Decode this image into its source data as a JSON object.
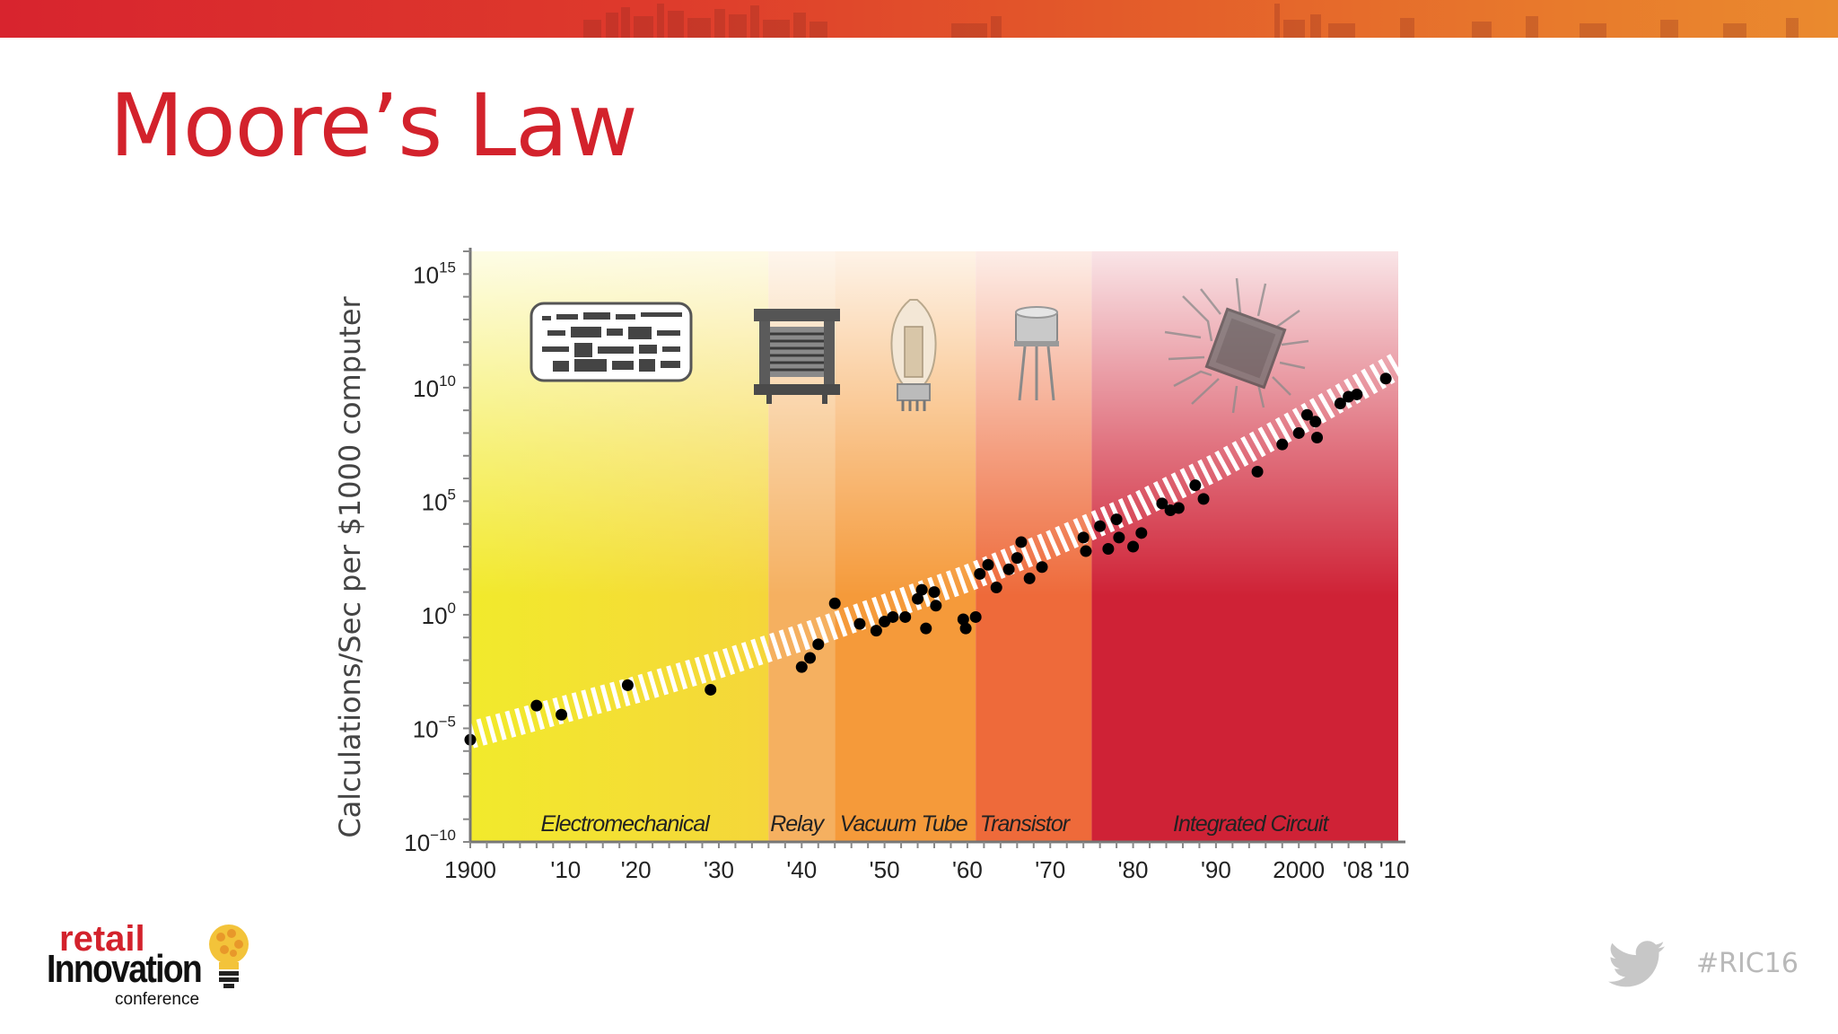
{
  "slide": {
    "title": "Moore’s Law",
    "hashtag": "#RIC16"
  },
  "logo": {
    "retail": "retail",
    "innovation": "Innovation",
    "conference": "conference"
  },
  "icons": [
    "city-skyline-icon",
    "punch-card-icon",
    "relay-icon",
    "vacuum-tube-icon",
    "transistor-icon",
    "integrated-circuit-icon",
    "bulb-icon",
    "twitter-bird-icon"
  ],
  "colors": {
    "title": "#d3222c",
    "banner_start": "#d8242e",
    "banner_end": "#ea8a2e",
    "points": "#000000",
    "band_electromechanical": "#f2ea2c",
    "band_relay": "#f5b060",
    "band_vacuum_tube": "#f59a3a",
    "band_transistor": "#ee6a3a",
    "band_integrated_circuit": "#cf2236"
  },
  "chart_data": {
    "type": "scatter",
    "xlabel": "",
    "ylabel": "Calculations/Sec  per $1000 computer",
    "xlim": [
      1900,
      2012
    ],
    "ylim": [
      -10,
      16
    ],
    "y_scale": "log10",
    "x_ticks": [
      1900,
      1910,
      1920,
      1930,
      1940,
      1950,
      1960,
      1970,
      1980,
      1990,
      2000,
      2008,
      2010
    ],
    "x_tick_labels": [
      "1900",
      "'10",
      "'20",
      "'30",
      "'40",
      "'50",
      "'60",
      "'70",
      "'80",
      "'90",
      "2000",
      "'08",
      "'10"
    ],
    "y_ticks": [
      -10,
      -5,
      0,
      5,
      10,
      15
    ],
    "y_tick_exponents": [
      "−10",
      "−5",
      "0",
      "5",
      "10",
      "15"
    ],
    "y_tick_base": "10",
    "grid": false,
    "bands": [
      {
        "label": "Electromechanical",
        "x0": 1900,
        "x1": 1936
      },
      {
        "label": "Relay",
        "x0": 1936,
        "x1": 1944
      },
      {
        "label": "Vacuum Tube",
        "x0": 1944,
        "x1": 1961
      },
      {
        "label": "Transistor",
        "x0": 1961,
        "x1": 1975
      },
      {
        "label": "Integrated Circuit",
        "x0": 1975,
        "x1": 2012
      }
    ],
    "trend": {
      "x": [
        1900,
        1910,
        1920,
        1930,
        1940,
        1950,
        1960,
        1970,
        1980,
        1990,
        2000,
        2012
      ],
      "y": [
        -5.3,
        -4.3,
        -3.3,
        -2.2,
        -1.0,
        0.3,
        1.6,
        3.1,
        4.7,
        6.5,
        8.5,
        11.0
      ]
    },
    "points": [
      {
        "x": 1900,
        "y": -5.5
      },
      {
        "x": 1908,
        "y": -4.0
      },
      {
        "x": 1911,
        "y": -4.4
      },
      {
        "x": 1919,
        "y": -3.1
      },
      {
        "x": 1929,
        "y": -3.3
      },
      {
        "x": 1940,
        "y": -2.3
      },
      {
        "x": 1941,
        "y": -1.9
      },
      {
        "x": 1942,
        "y": -1.3
      },
      {
        "x": 1944,
        "y": 0.5
      },
      {
        "x": 1947,
        "y": -0.4
      },
      {
        "x": 1949,
        "y": -0.7
      },
      {
        "x": 1950,
        "y": -0.3
      },
      {
        "x": 1951,
        "y": -0.1
      },
      {
        "x": 1952.5,
        "y": -0.1
      },
      {
        "x": 1954,
        "y": 0.7
      },
      {
        "x": 1954.5,
        "y": 1.1
      },
      {
        "x": 1955,
        "y": -0.6
      },
      {
        "x": 1956,
        "y": 1.0
      },
      {
        "x": 1956.2,
        "y": 0.4
      },
      {
        "x": 1959.5,
        "y": -0.2
      },
      {
        "x": 1959.8,
        "y": -0.6
      },
      {
        "x": 1961,
        "y": -0.1
      },
      {
        "x": 1961.5,
        "y": 1.8
      },
      {
        "x": 1962.5,
        "y": 2.2
      },
      {
        "x": 1963.5,
        "y": 1.2
      },
      {
        "x": 1965,
        "y": 2.0
      },
      {
        "x": 1966,
        "y": 2.5
      },
      {
        "x": 1966.5,
        "y": 3.2
      },
      {
        "x": 1967.5,
        "y": 1.6
      },
      {
        "x": 1969,
        "y": 2.1
      },
      {
        "x": 1974,
        "y": 3.4
      },
      {
        "x": 1974.3,
        "y": 2.8
      },
      {
        "x": 1976,
        "y": 3.9
      },
      {
        "x": 1977,
        "y": 2.9
      },
      {
        "x": 1978,
        "y": 4.2
      },
      {
        "x": 1978.3,
        "y": 3.4
      },
      {
        "x": 1980,
        "y": 3.0
      },
      {
        "x": 1981,
        "y": 3.6
      },
      {
        "x": 1983.5,
        "y": 4.9
      },
      {
        "x": 1984.5,
        "y": 4.6
      },
      {
        "x": 1985.5,
        "y": 4.7
      },
      {
        "x": 1987.5,
        "y": 5.7
      },
      {
        "x": 1988.5,
        "y": 5.1
      },
      {
        "x": 1995,
        "y": 6.3
      },
      {
        "x": 1998,
        "y": 7.5
      },
      {
        "x": 2000,
        "y": 8.0
      },
      {
        "x": 2001,
        "y": 8.8
      },
      {
        "x": 2002,
        "y": 8.5
      },
      {
        "x": 2002.2,
        "y": 7.8
      },
      {
        "x": 2005,
        "y": 9.3
      },
      {
        "x": 2006,
        "y": 9.6
      },
      {
        "x": 2007,
        "y": 9.7
      },
      {
        "x": 2010.5,
        "y": 10.4
      }
    ]
  }
}
